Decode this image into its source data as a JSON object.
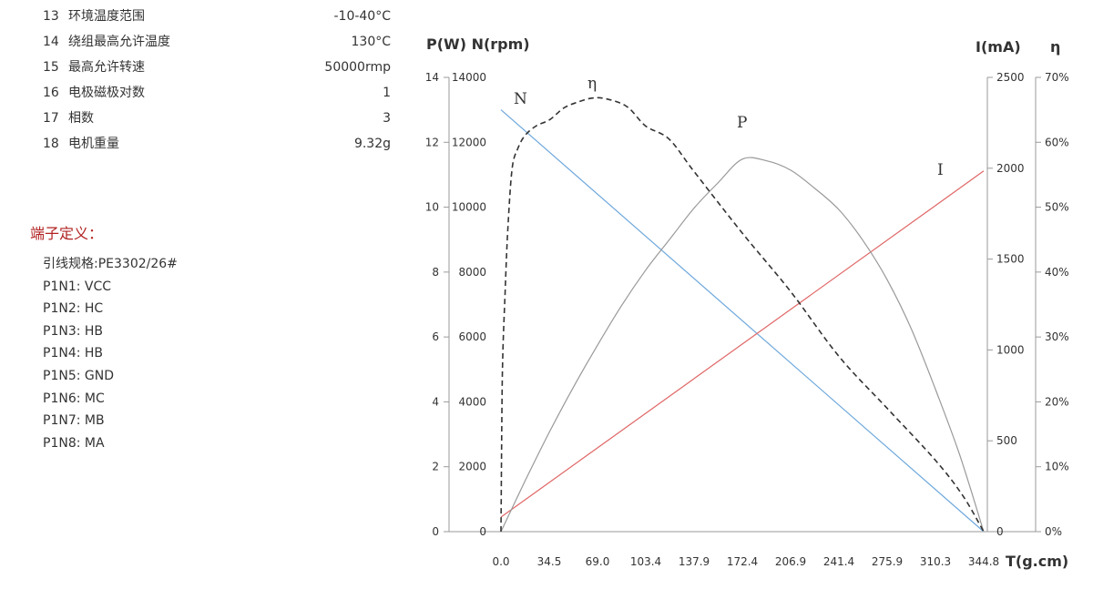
{
  "specs": [
    {
      "no": "13",
      "name": "环境温度范围",
      "value": "-10-40°C"
    },
    {
      "no": "14",
      "name": "绕组最高允许温度",
      "value": "130°C"
    },
    {
      "no": "15",
      "name": "最高允许转速",
      "value": "50000rmp"
    },
    {
      "no": "16",
      "name": "电极磁极对数",
      "value": "1"
    },
    {
      "no": "17",
      "name": "相数",
      "value": "3"
    },
    {
      "no": "18",
      "name": "电机重量",
      "value": "9.32g"
    }
  ],
  "terminal": {
    "title": "端子定义：",
    "items": [
      "引线规格:PE3302/26#",
      "P1N1: VCC",
      "P1N2: HC",
      "P1N3: HB",
      "P1N4: HB",
      "P1N5: GND",
      "P1N6: MC",
      "P1N7: MB",
      "P1N8: MA"
    ]
  },
  "chart_data": {
    "type": "line",
    "xlabel": "T(g.cm)",
    "ylabel_left": "P(W) N(rpm)",
    "ylabel_right": "I(mA)",
    "ylabel_eff": "η",
    "x_ticks": [
      "0.0",
      "34.5",
      "69.0",
      "103.4",
      "137.9",
      "172.4",
      "206.9",
      "241.4",
      "275.9",
      "310.3",
      "344.8"
    ],
    "y_p_ticks": [
      "0",
      "2",
      "4",
      "6",
      "8",
      "10",
      "12",
      "14"
    ],
    "y_n_ticks": [
      "0",
      "2000",
      "4000",
      "6000",
      "8000",
      "10000",
      "12000",
      "14000"
    ],
    "y_i_ticks": [
      "0",
      "500",
      "1000",
      "1500",
      "2000",
      "2500"
    ],
    "y_eff_ticks": [
      "0%",
      "10%",
      "20%",
      "30%",
      "40%",
      "50%",
      "60%",
      "70%"
    ],
    "xlim": [
      0,
      344.8
    ],
    "ylim_p": [
      0,
      14
    ],
    "ylim_n": [
      0,
      14000
    ],
    "ylim_i": [
      0,
      2500
    ],
    "ylim_eff": [
      0,
      70
    ],
    "grid": false,
    "colors": {
      "N": "#6fa8dc",
      "I": "#e06666",
      "P": "#999999",
      "eta": "#333333"
    },
    "series": [
      {
        "name": "N",
        "axis": "n",
        "x": [
          0,
          344.8
        ],
        "y": [
          13000,
          0
        ]
      },
      {
        "name": "I",
        "axis": "i",
        "x": [
          0,
          344.8
        ],
        "y": [
          80,
          1985
        ]
      },
      {
        "name": "P",
        "axis": "p",
        "x": [
          0,
          17.2,
          34.5,
          51.7,
          69.0,
          86.2,
          103.4,
          120.7,
          137.9,
          155.2,
          172.4,
          189.6,
          206.9,
          224.1,
          241.4,
          258.6,
          275.9,
          293.1,
          310.3,
          327.6,
          344.8
        ],
        "y": [
          0,
          1.56,
          3.06,
          4.45,
          5.75,
          6.97,
          8.06,
          9.02,
          9.97,
          10.76,
          11.48,
          11.43,
          11.14,
          10.58,
          9.92,
          8.97,
          7.76,
          6.25,
          4.39,
          2.37,
          0
        ]
      },
      {
        "name": "η",
        "axis": "eff",
        "x": [
          0,
          1,
          3,
          5,
          8,
          12,
          17,
          25,
          35,
          45,
          55,
          65,
          75,
          90,
          103.4,
          120,
          137.9,
          172.4,
          206.9,
          241.4,
          275.9,
          310.3,
          330,
          344.8
        ],
        "y": [
          0,
          24,
          37,
          47,
          56,
          59,
          61,
          62.5,
          63.5,
          65.3,
          66.2,
          66.8,
          66.7,
          65.5,
          62.5,
          60.5,
          55.5,
          46,
          37,
          27,
          19,
          11,
          5.5,
          0
        ]
      }
    ],
    "curve_labels": [
      "N",
      "η",
      "P",
      "I"
    ]
  }
}
